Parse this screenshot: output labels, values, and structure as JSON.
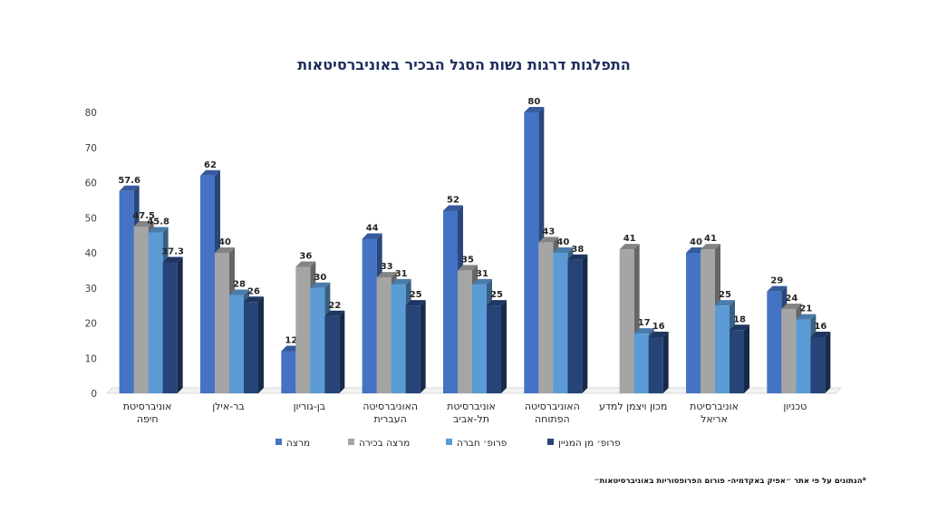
{
  "chart_data": {
    "type": "bar",
    "title": "התפלגות דרגות נשות הסגל הבכיר באוניברסיטאות",
    "categories": [
      [
        "אוניברסיטת",
        "חיפה"
      ],
      [
        "בר-אילן"
      ],
      [
        "בן-גוריון"
      ],
      [
        "האוניברסיטה",
        "העברית"
      ],
      [
        "אוניברסיטת",
        "תל-אביב"
      ],
      [
        "האוניברסיטה",
        "הפתוחה"
      ],
      [
        "מכון ויצמן למדע"
      ],
      [
        "אוניברסיטת",
        "אריאל"
      ],
      [
        "טכניון"
      ]
    ],
    "series": [
      {
        "name": "מרצה",
        "color": "#4472c4",
        "values": [
          57.6,
          62,
          12,
          44,
          52,
          80,
          null,
          40,
          29
        ]
      },
      {
        "name": "מרצה בכירה",
        "color": "#a5a5a5",
        "values": [
          47.5,
          40,
          36,
          33,
          35,
          43,
          41,
          41,
          24
        ]
      },
      {
        "name": "פרופ׳ חברה",
        "color": "#5b9bd5",
        "values": [
          45.8,
          28,
          30,
          31,
          31,
          40,
          17,
          25,
          21
        ]
      },
      {
        "name": "פרופ׳ מן המניין",
        "color": "#264478",
        "values": [
          37.3,
          26,
          22,
          25,
          25,
          38,
          16,
          18,
          16
        ]
      }
    ],
    "yticks": [
      "0",
      "10",
      "20",
      "30",
      "40",
      "50",
      "60",
      "70",
      "80"
    ],
    "ylim": [
      0,
      80
    ],
    "legend_position": "bottom",
    "grid": false
  },
  "footnote": "*הנתונים על פי אתר ״אפיק באקדמיה- פורום הפרופסוריות באוניברסיטאות״"
}
